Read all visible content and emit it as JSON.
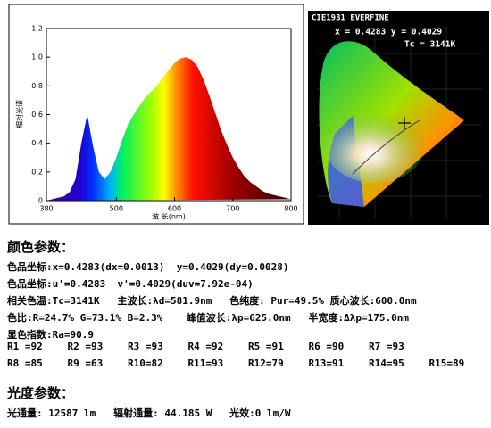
{
  "chart_data": {
    "type": "area",
    "y_label": "相对光谱",
    "x_label": "波 长(nm)",
    "x": [
      380,
      390,
      400,
      410,
      420,
      430,
      440,
      450,
      460,
      470,
      480,
      490,
      500,
      510,
      520,
      530,
      540,
      550,
      560,
      570,
      580,
      590,
      600,
      610,
      620,
      630,
      640,
      650,
      660,
      670,
      680,
      690,
      700,
      710,
      720,
      730,
      740,
      750,
      760,
      770,
      780,
      790,
      800
    ],
    "values": [
      0.0,
      0.01,
      0.02,
      0.03,
      0.06,
      0.15,
      0.4,
      0.6,
      0.38,
      0.2,
      0.15,
      0.2,
      0.3,
      0.42,
      0.53,
      0.6,
      0.66,
      0.72,
      0.76,
      0.8,
      0.86,
      0.91,
      0.96,
      0.99,
      1.0,
      0.98,
      0.93,
      0.84,
      0.73,
      0.61,
      0.49,
      0.39,
      0.3,
      0.23,
      0.17,
      0.13,
      0.1,
      0.07,
      0.05,
      0.04,
      0.03,
      0.02,
      0.01
    ],
    "xlim": [
      380,
      800
    ],
    "xticks": [
      380,
      500,
      600,
      700,
      800
    ],
    "ylim": [
      0,
      1.2
    ],
    "yticks": [
      0,
      0.2,
      0.4,
      0.6,
      0.8,
      {
        "value": 1,
        "label": "1.0"
      },
      1.2
    ]
  },
  "cie": {
    "title": "CIE1931 EVERFINE",
    "coords": "x = 0.4283 y = 0.4029",
    "tc": "Tc = 3141K"
  },
  "color_params": {
    "heading": "颜色参数：",
    "lines": [
      "色品坐标:x=0.4283(dx=0.0013)  y=0.4029(dy=0.0028)",
      "色品坐标:u'=0.4283  v'=0.4029(duv=7.92e-04)",
      "相关色温:Tc=3141K   主波长:λd=581.9nm   色纯度: Pur=49.5% 质心波长:600.0nm",
      "色比:R=24.7% G=73.1% B=2.3%    峰值波长:λp=625.0nm   半宽度:Δλp=175.0nm",
      "显色指数:Ra=90.9"
    ],
    "render_indices": [
      [
        "R1 =92",
        "R2 =93",
        "R3 =93",
        "R4 =92",
        "R5 =91",
        "R6 =90",
        "R7 =93"
      ],
      [
        "R8 =85",
        "R9 =63",
        "R10=82",
        "R11=93",
        "R12=79",
        "R13=91",
        "R14=95",
        "R15=89"
      ]
    ]
  },
  "photometric": {
    "heading": "光度参数：",
    "line": "光通量: 12587 lm   辐射通量: 44.185 W   光效:0 lm/W"
  }
}
